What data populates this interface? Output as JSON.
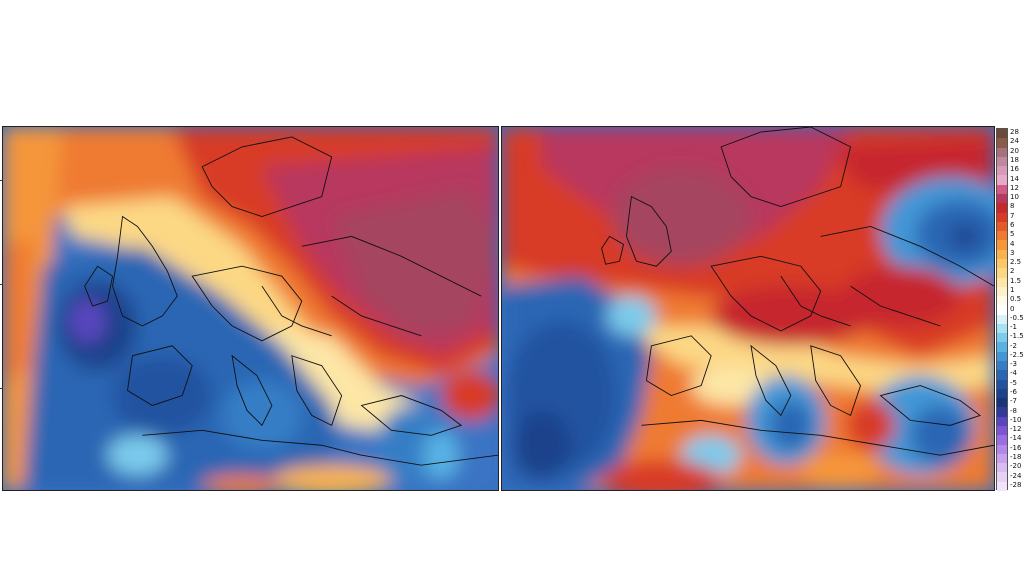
{
  "colorbar": {
    "entries": [
      {
        "label": "28",
        "color": "#6b4a3a"
      },
      {
        "label": "24",
        "color": "#8a5a4a"
      },
      {
        "label": "20",
        "color": "#a6707c"
      },
      {
        "label": "18",
        "color": "#c0889e"
      },
      {
        "label": "16",
        "color": "#d79ab6"
      },
      {
        "label": "14",
        "color": "#e8a8c8"
      },
      {
        "label": "12",
        "color": "#d35a88"
      },
      {
        "label": "10",
        "color": "#b8395f"
      },
      {
        "label": "8",
        "color": "#c6282e"
      },
      {
        "label": "7",
        "color": "#d83a26"
      },
      {
        "label": "6",
        "color": "#e55a2a"
      },
      {
        "label": "5",
        "color": "#ef7a30"
      },
      {
        "label": "4",
        "color": "#f5963a"
      },
      {
        "label": "3",
        "color": "#f9b24e"
      },
      {
        "label": "2.5",
        "color": "#fbc767"
      },
      {
        "label": "2",
        "color": "#fcd885"
      },
      {
        "label": "1.5",
        "color": "#fde6a6"
      },
      {
        "label": "1",
        "color": "#fef1c8"
      },
      {
        "label": "0.5",
        "color": "#fffbe8"
      },
      {
        "label": "0",
        "color": "#ffffff"
      },
      {
        "label": "-0.5",
        "color": "#d8f2f8"
      },
      {
        "label": "-1",
        "color": "#a8e2f2"
      },
      {
        "label": "-1.5",
        "color": "#7ccbec"
      },
      {
        "label": "-2",
        "color": "#58b2e4"
      },
      {
        "label": "-2.5",
        "color": "#4397d6"
      },
      {
        "label": "-3",
        "color": "#357ec6"
      },
      {
        "label": "-4",
        "color": "#2a66b4"
      },
      {
        "label": "-5",
        "color": "#2152a0"
      },
      {
        "label": "-6",
        "color": "#1b428c"
      },
      {
        "label": "-7",
        "color": "#1a3478"
      },
      {
        "label": "-8",
        "color": "#2f3a9a"
      },
      {
        "label": "-10",
        "color": "#5a44c0"
      },
      {
        "label": "-12",
        "color": "#7b55d6"
      },
      {
        "label": "-14",
        "color": "#9a6ee2"
      },
      {
        "label": "-16",
        "color": "#b488ea"
      },
      {
        "label": "-18",
        "color": "#c9a2ef"
      },
      {
        "label": "-20",
        "color": "#d9bcf2"
      },
      {
        "label": "-24",
        "color": "#e6d2f5"
      },
      {
        "label": "-28",
        "color": "#f1e4f8"
      }
    ]
  },
  "palette": {
    "ocean_cold": "#3a6fc0",
    "deep_cold": "#1f4a9a",
    "very_cold": "#5a44c0",
    "light_cold": "#7ccbec",
    "warm": "#ef7a30",
    "hot": "#d83a26",
    "very_hot": "#b8395f",
    "neutral": "#fde6a6"
  }
}
